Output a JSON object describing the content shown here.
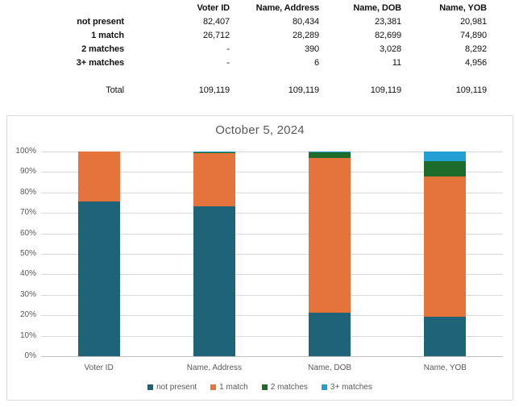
{
  "table": {
    "column_headers": [
      "Voter ID",
      "Name, Address",
      "Name, DOB",
      "Name, YOB"
    ],
    "rows": [
      {
        "label": "not present",
        "values": [
          "82,407",
          "80,434",
          "23,381",
          "20,981"
        ]
      },
      {
        "label": "1 match",
        "values": [
          "26,712",
          "28,289",
          "82,699",
          "74,890"
        ]
      },
      {
        "label": "2 matches",
        "values": [
          "-",
          "390",
          "3,028",
          "8,292"
        ]
      },
      {
        "label": "3+ matches",
        "values": [
          "-",
          "6",
          "11",
          "4,956"
        ]
      }
    ],
    "total_label": "Total",
    "total_values": [
      "109,119",
      "109,119",
      "109,119",
      "109,119"
    ]
  },
  "chart_data": {
    "type": "bar",
    "stacked": true,
    "percent_stacked": true,
    "title": "October 5, 2024",
    "categories": [
      "Voter ID",
      "Name, Address",
      "Name, DOB",
      "Name, YOB"
    ],
    "series": [
      {
        "name": "not present",
        "color": "#1f6379",
        "values": [
          82407,
          80434,
          23381,
          20981
        ]
      },
      {
        "name": "1 match",
        "color": "#e5733c",
        "values": [
          26712,
          28289,
          82699,
          74890
        ]
      },
      {
        "name": "2 matches",
        "color": "#1e6c2b",
        "values": [
          0,
          390,
          3028,
          8292
        ]
      },
      {
        "name": "3+ matches",
        "color": "#239fd4",
        "values": [
          0,
          6,
          11,
          4956
        ]
      }
    ],
    "column_total": 109119,
    "y_tick_labels": [
      "0%",
      "10%",
      "20%",
      "30%",
      "40%",
      "50%",
      "60%",
      "70%",
      "80%",
      "90%",
      "100%"
    ],
    "ylim": [
      0,
      100
    ],
    "grid": true,
    "legend_position": "bottom"
  }
}
